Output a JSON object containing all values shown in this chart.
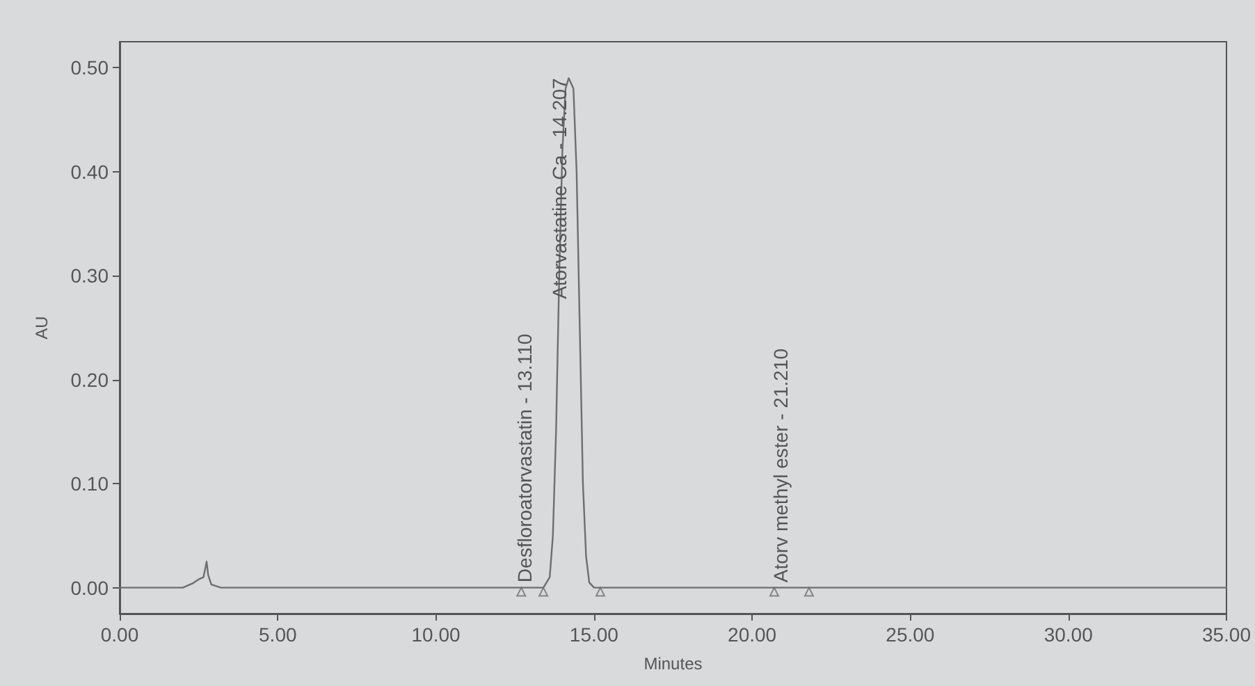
{
  "chart_data": {
    "type": "line",
    "xlabel": "Minutes",
    "ylabel": "AU",
    "xlim": [
      0,
      35
    ],
    "ylim": [
      -0.025,
      0.525
    ],
    "xticks": [
      {
        "value": 0,
        "label": "0.00"
      },
      {
        "value": 5,
        "label": "5.00"
      },
      {
        "value": 10,
        "label": "10.00"
      },
      {
        "value": 15,
        "label": "15.00"
      },
      {
        "value": 20,
        "label": "20.00"
      },
      {
        "value": 25,
        "label": "25.00"
      },
      {
        "value": 30,
        "label": "30.00"
      },
      {
        "value": 35,
        "label": "35.00"
      }
    ],
    "yticks": [
      {
        "value": 0,
        "label": "0.00"
      },
      {
        "value": 0.1,
        "label": "0.10"
      },
      {
        "value": 0.2,
        "label": "0.20"
      },
      {
        "value": 0.3,
        "label": "0.30"
      },
      {
        "value": 0.4,
        "label": "0.40"
      },
      {
        "value": 0.5,
        "label": "0.50"
      }
    ],
    "grid": false,
    "marker": "none",
    "line_style": "solid",
    "series": [
      {
        "type": "line",
        "color": "#6e6e6e",
        "x": [
          0,
          2.0,
          2.3,
          2.5,
          2.65,
          2.75,
          2.8,
          2.9,
          3.2,
          13.4,
          13.6,
          13.7,
          13.8,
          13.9,
          14.0,
          14.1,
          14.2,
          14.35,
          14.45,
          14.55,
          14.65,
          14.75,
          14.85,
          15.0,
          35
        ],
        "values": [
          0,
          0,
          0.004,
          0.008,
          0.01,
          0.025,
          0.012,
          0.003,
          0,
          0,
          0.01,
          0.05,
          0.15,
          0.3,
          0.42,
          0.48,
          0.49,
          0.48,
          0.4,
          0.25,
          0.1,
          0.03,
          0.005,
          0,
          0
        ]
      },
      {
        "type": "scatter",
        "marker": "triangle",
        "color": "#6e6e6e",
        "x": [
          12.7,
          13.4,
          15.2,
          20.7,
          21.8
        ],
        "values": [
          -0.004,
          -0.004,
          -0.004,
          -0.004,
          -0.004
        ]
      }
    ],
    "annotations": [
      {
        "text": "Desfloroatorvastatin - 13.110",
        "x": 13.11,
        "y": 0.005
      },
      {
        "text": "Atorvastatine Ca - 14.207",
        "x": 14.207,
        "y": 0.49
      },
      {
        "text": "Atorv methyl ester - 21.210",
        "x": 21.21,
        "y": 0.005
      }
    ]
  }
}
